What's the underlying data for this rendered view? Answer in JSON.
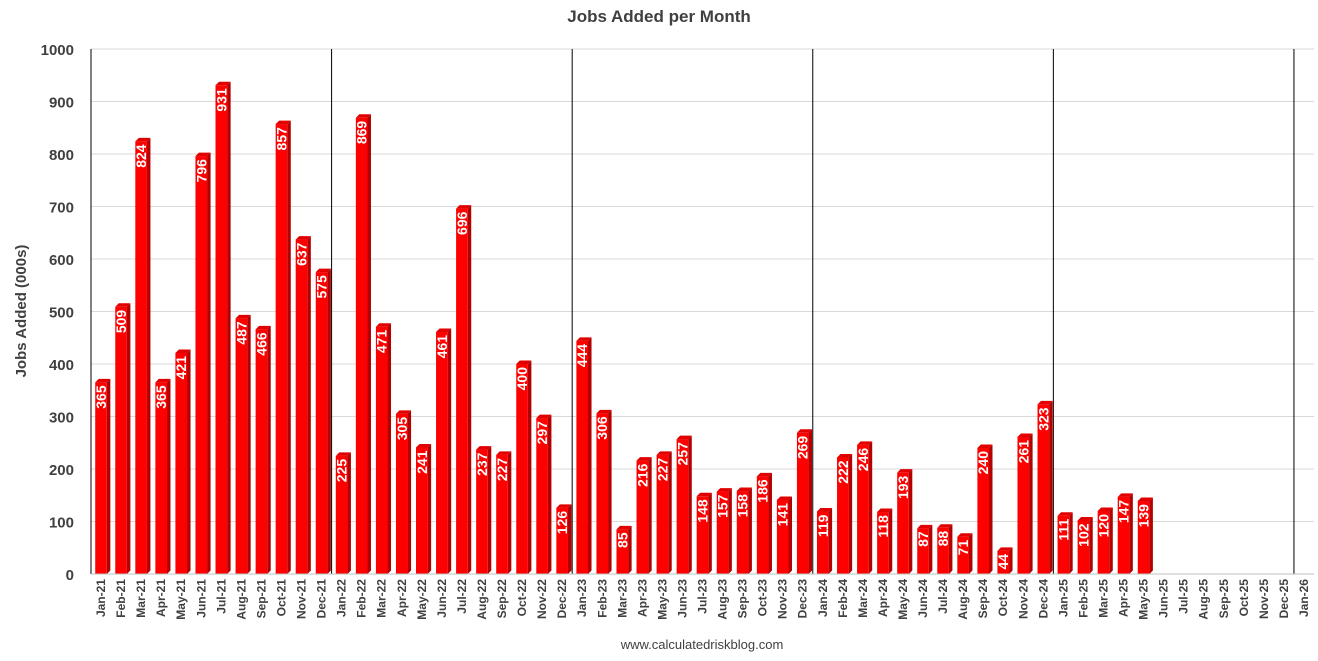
{
  "chart_data": {
    "type": "bar",
    "title": "Jobs Added per Month",
    "xlabel": "",
    "ylabel": "Jobs Added (000s)",
    "ylim": [
      0,
      1000
    ],
    "yticks": [
      0,
      100,
      200,
      300,
      400,
      500,
      600,
      700,
      800,
      900,
      1000
    ],
    "grid": true,
    "legend": "none",
    "categories": [
      "Jan-21",
      "Feb-21",
      "Mar-21",
      "Apr-21",
      "May-21",
      "Jun-21",
      "Jul-21",
      "Aug-21",
      "Sep-21",
      "Oct-21",
      "Nov-21",
      "Dec-21",
      "Jan-22",
      "Feb-22",
      "Mar-22",
      "Apr-22",
      "May-22",
      "Jun-22",
      "Jul-22",
      "Aug-22",
      "Sep-22",
      "Oct-22",
      "Nov-22",
      "Dec-22",
      "Jan-23",
      "Feb-23",
      "Mar-23",
      "Apr-23",
      "May-23",
      "Jun-23",
      "Jul-23",
      "Aug-23",
      "Sep-23",
      "Oct-23",
      "Nov-23",
      "Dec-23",
      "Jan-24",
      "Feb-24",
      "Mar-24",
      "Apr-24",
      "May-24",
      "Jun-24",
      "Jul-24",
      "Aug-24",
      "Sep-24",
      "Oct-24",
      "Nov-24",
      "Dec-24",
      "Jan-25",
      "Feb-25",
      "Mar-25",
      "Apr-25",
      "May-25",
      "Jun-25",
      "Jul-25",
      "Aug-25",
      "Sep-25",
      "Oct-25",
      "Nov-25",
      "Dec-25",
      "Jan-26"
    ],
    "values": [
      365,
      509,
      824,
      365,
      421,
      796,
      931,
      487,
      466,
      857,
      637,
      575,
      225,
      869,
      471,
      305,
      241,
      461,
      696,
      237,
      227,
      400,
      297,
      126,
      444,
      306,
      85,
      216,
      227,
      257,
      148,
      157,
      158,
      186,
      141,
      269,
      119,
      222,
      246,
      118,
      193,
      87,
      88,
      71,
      240,
      44,
      261,
      323,
      111,
      102,
      120,
      147,
      139,
      null,
      null,
      null,
      null,
      null,
      null,
      null,
      null
    ],
    "year_dividers_after": [
      "Dec-21",
      "Dec-22",
      "Dec-23",
      "Dec-24",
      "Dec-25"
    ],
    "bar_color": "#ff0000",
    "label_color": "#ffffff"
  },
  "source": "www.calculatedriskblog.com"
}
